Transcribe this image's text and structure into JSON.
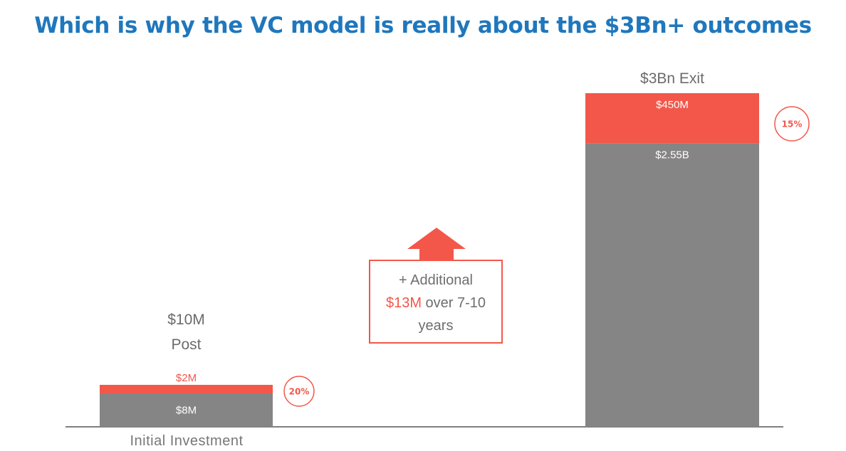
{
  "slide": {
    "title": "Which is why the VC model is really about the $3Bn+ outcomes"
  },
  "colors": {
    "title": "#1f77bd",
    "founder_segment": "#858585",
    "investor_segment": "#f2574a",
    "text_gray": "#6b6b6b"
  },
  "chart_data": {
    "type": "bar",
    "stacked": true,
    "unit": "USD",
    "categories": [
      "Initial Investment",
      "$3Bn Exit"
    ],
    "series": [
      {
        "values": [
          8000000,
          2550000000
        ],
        "labels": [
          "$8M",
          "$2.55B"
        ],
        "color": "#858585"
      },
      {
        "values": [
          2000000,
          450000000
        ],
        "labels": [
          "$2M",
          "$450M"
        ],
        "color": "#f2574a"
      }
    ],
    "bar_top_labels": [
      [
        "$10M",
        "Post"
      ],
      [
        "$3Bn Exit"
      ]
    ],
    "ownership_badges": [
      "20%",
      "15%"
    ],
    "xlabel": "Initial Investment",
    "grid": false,
    "legend": false,
    "annotation": {
      "line1": "+ Additional",
      "line2_accent": "$13M",
      "line2_rest": " over 7-10",
      "line3": "years"
    }
  }
}
